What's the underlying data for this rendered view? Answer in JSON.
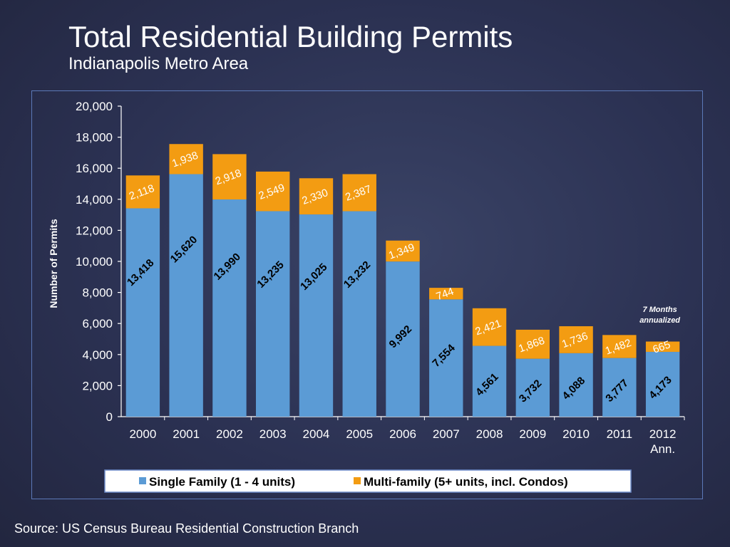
{
  "slide": {
    "title": "Total Residential Building Permits",
    "subtitle": "Indianapolis Metro Area",
    "source": "Source: US Census Bureau Residential Construction Branch"
  },
  "colors": {
    "single_family": "#5b9bd5",
    "multi_family": "#f39c12",
    "axis": "#ffffff",
    "legend_box_bg": "#ffffff",
    "legend_border": "#6e8cc9"
  },
  "chart_data": {
    "type": "bar",
    "stacked": true,
    "categories": [
      "2000",
      "2001",
      "2002",
      "2003",
      "2004",
      "2005",
      "2006",
      "2007",
      "2008",
      "2009",
      "2010",
      "2011",
      "2012\nAnn."
    ],
    "series": [
      {
        "name": "Single Family (1 - 4 units)",
        "values": [
          13418,
          15620,
          13990,
          13235,
          13025,
          13232,
          9992,
          7554,
          4561,
          3732,
          4088,
          3777,
          4173
        ]
      },
      {
        "name": "Multi-family (5+ units, incl. Condos)",
        "values": [
          2118,
          1938,
          2918,
          2549,
          2330,
          2387,
          1349,
          744,
          2421,
          1868,
          1736,
          1482,
          665
        ]
      }
    ],
    "single_labels": [
      "13,418",
      "15,620",
      "13,990",
      "13,235",
      "13,025",
      "13,232",
      "9,992",
      "7,554",
      "4,561",
      "3,732",
      "4,088",
      "3,777",
      "4,173"
    ],
    "multi_labels": [
      "2,118",
      "1,938",
      "2,918",
      "2,549",
      "2,330",
      "2,387",
      "1,349",
      "744",
      "2,421",
      "1,868",
      "1,736",
      "1,482",
      "665"
    ],
    "ylabel": "Number of Permits",
    "ylim": [
      0,
      20000
    ],
    "yticks": [
      0,
      2000,
      4000,
      6000,
      8000,
      10000,
      12000,
      14000,
      16000,
      18000,
      20000
    ],
    "ytick_labels": [
      "0",
      "2,000",
      "4,000",
      "6,000",
      "8,000",
      "10,000",
      "12,000",
      "14,000",
      "16,000",
      "18,000",
      "20,000"
    ],
    "legend_position": "bottom",
    "annotation": [
      "7 Months",
      "annualized"
    ],
    "grid": false
  }
}
